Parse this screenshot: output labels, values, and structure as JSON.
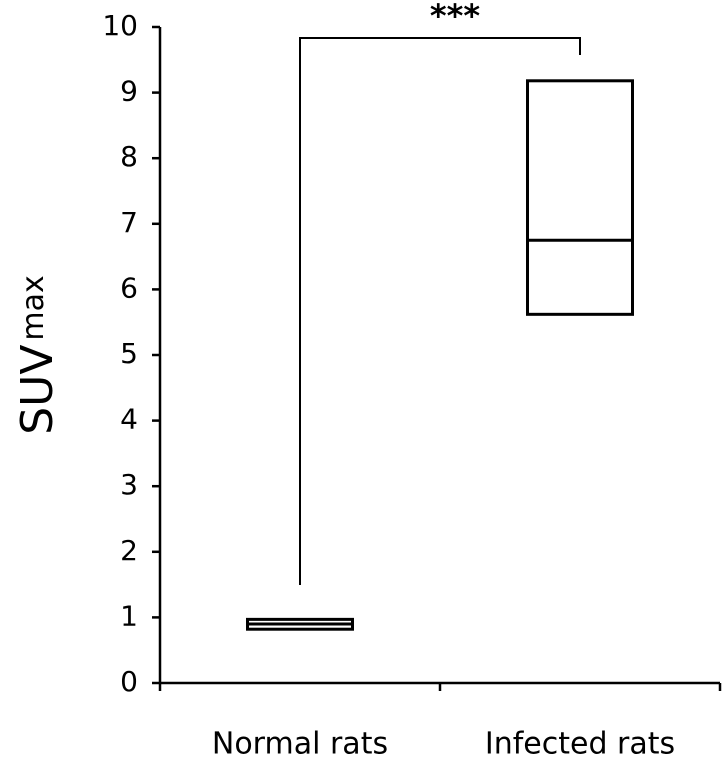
{
  "chart_data": {
    "type": "box",
    "y_label": "SUV",
    "y_label_subscript": "max",
    "annotation": "***",
    "categories": [
      "Normal rats",
      "Infected rats"
    ],
    "q1": [
      0.82,
      5.62
    ],
    "median": [
      0.9,
      6.75
    ],
    "q3": [
      0.97,
      9.18
    ],
    "ylim": [
      0,
      10
    ],
    "yticks": [
      0,
      1,
      2,
      3,
      4,
      5,
      6,
      7,
      8,
      9,
      10
    ],
    "color": "#000000"
  }
}
